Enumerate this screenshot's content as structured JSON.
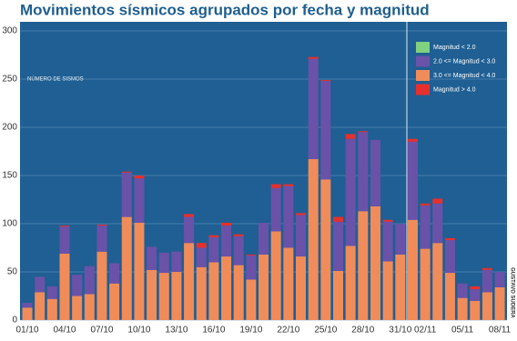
{
  "chart_data": {
    "type": "stacked_bar",
    "title": "Movimientos sísmicos agrupados por fecha y magnitud",
    "y_label": "NÚMERO DE SISMOS",
    "credit": "GUSTAVO SUDERA",
    "categories": [
      "01/10",
      null,
      null,
      "04/10",
      null,
      null,
      "07/10",
      null,
      null,
      "10/10",
      null,
      null,
      "13/10",
      null,
      null,
      "16/10",
      null,
      null,
      "19/10",
      null,
      null,
      "22/10",
      null,
      null,
      "25/10",
      null,
      null,
      "28/10",
      null,
      null,
      "31/10",
      null,
      "02/11",
      null,
      null,
      "05/11",
      null,
      null,
      "08/11"
    ],
    "series": [
      {
        "name": "Magnitud < 2.0",
        "color": "#7fd17f",
        "values": [
          0,
          0,
          0,
          0,
          0,
          0,
          0,
          0,
          0,
          0,
          0,
          0,
          0,
          0,
          0,
          0,
          0,
          0,
          0,
          0,
          0,
          0,
          0,
          0,
          0,
          0,
          0,
          0,
          0,
          0,
          0,
          0,
          0,
          0,
          0,
          0,
          0,
          0,
          0
        ]
      },
      {
        "name": "3.0 <= Magnitud < 4.0",
        "color": "#f08c5a",
        "values": [
          13,
          29,
          22,
          69,
          25,
          27,
          71,
          38,
          107,
          101,
          52,
          49,
          50,
          80,
          55,
          60,
          66,
          57,
          42,
          68,
          92,
          75,
          66,
          167,
          146,
          51,
          77,
          113,
          118,
          61,
          68,
          104,
          74,
          80,
          49,
          23,
          20,
          29,
          34
        ]
      },
      {
        "name": "2.0 <= Magnitud < 3.0",
        "color": "#6a52a8",
        "values": [
          5,
          16,
          13,
          28,
          22,
          29,
          27,
          21,
          46,
          46,
          24,
          21,
          21,
          27,
          20,
          26,
          32,
          30,
          25,
          33,
          45,
          64,
          43,
          104,
          102,
          51,
          111,
          82,
          69,
          41,
          32,
          81,
          45,
          41,
          34,
          15,
          12,
          23,
          16
        ]
      },
      {
        "name": "Magnitud > 4.0",
        "color": "#e5302e",
        "values": [
          0,
          0,
          0,
          1,
          0,
          0,
          1,
          0,
          1,
          3,
          0,
          0,
          0,
          3,
          5,
          2,
          3,
          2,
          1,
          0,
          4,
          2,
          2,
          2,
          1,
          5,
          5,
          1,
          0,
          2,
          0,
          3,
          2,
          5,
          2,
          0,
          3,
          2,
          0
        ]
      }
    ],
    "legend_order": [
      0,
      2,
      1,
      3
    ],
    "legend": "upper right",
    "ylim": [
      0,
      300
    ],
    "yticks": [
      0,
      50,
      100,
      150,
      200,
      250,
      300
    ],
    "grid": true
  }
}
